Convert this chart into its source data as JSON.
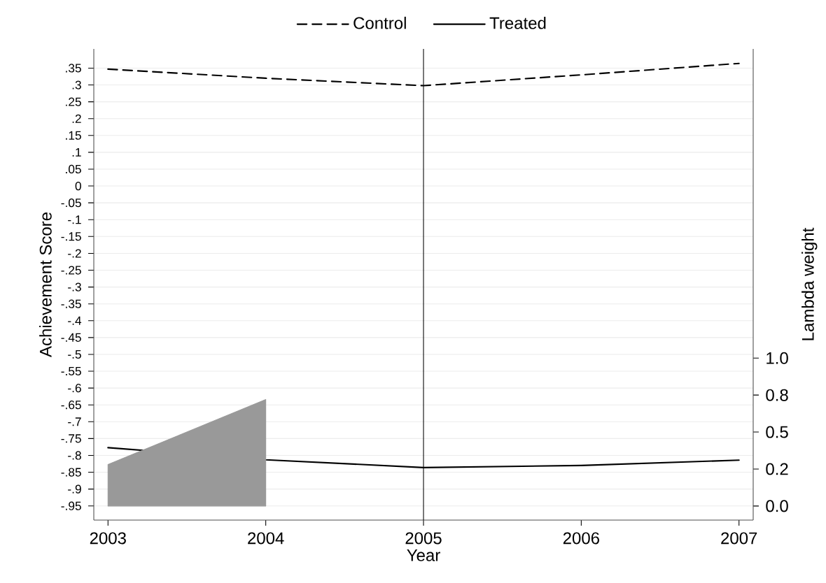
{
  "chart_data": {
    "type": "line",
    "xlabel": "Year",
    "ylabel": "Achievement Score",
    "y2label": "Lambda weight",
    "x": [
      2003,
      2004,
      2005,
      2006,
      2007
    ],
    "series": [
      {
        "name": "Control",
        "color": "#000000",
        "line_style": "dashed",
        "values": [
          0.347,
          0.32,
          0.298,
          0.33,
          0.364
        ]
      },
      {
        "name": "Treated",
        "color": "#000000",
        "line_style": "solid",
        "values": [
          -0.777,
          -0.813,
          -0.836,
          -0.83,
          -0.814
        ]
      },
      {
        "type": "area",
        "axis": "y2",
        "color": "#999999",
        "x": [
          2003,
          2004
        ],
        "values": [
          0.28,
          0.72
        ]
      }
    ],
    "xlim": [
      2002.91,
      2007.09
    ],
    "xticks": [
      2003,
      2004,
      2005,
      2006,
      2007
    ],
    "ylim": [
      -0.992,
      0.407
    ],
    "yticks": [
      {
        "value": 0.35,
        "label": ".35"
      },
      {
        "value": 0.3,
        "label": ".3"
      },
      {
        "value": 0.25,
        "label": ".25"
      },
      {
        "value": 0.2,
        "label": ".2"
      },
      {
        "value": 0.15,
        "label": ".15"
      },
      {
        "value": 0.1,
        "label": ".1"
      },
      {
        "value": 0.05,
        "label": ".05"
      },
      0,
      {
        "value": -0.05,
        "label": "-.05"
      },
      {
        "value": -0.1,
        "label": "-.1"
      },
      {
        "value": -0.15,
        "label": "-.15"
      },
      {
        "value": -0.2,
        "label": "-.2"
      },
      {
        "value": -0.25,
        "label": "-.25"
      },
      {
        "value": -0.3,
        "label": "-.3"
      },
      {
        "value": -0.35,
        "label": "-.35"
      },
      {
        "value": -0.4,
        "label": "-.4"
      },
      {
        "value": -0.45,
        "label": "-.45"
      },
      {
        "value": -0.5,
        "label": "-.5"
      },
      {
        "value": -0.55,
        "label": "-.55"
      },
      {
        "value": -0.6,
        "label": "-.6"
      },
      {
        "value": -0.65,
        "label": "-.65"
      },
      {
        "value": -0.7,
        "label": "-.7"
      },
      {
        "value": -0.75,
        "label": "-.75"
      },
      {
        "value": -0.8,
        "label": "-.8"
      },
      {
        "value": -0.85,
        "label": "-.85"
      },
      {
        "value": -0.9,
        "label": "-.9"
      },
      {
        "value": -0.95,
        "label": "-.95"
      }
    ],
    "y2lim": [
      -0.095,
      3.09
    ],
    "y2ticks": [
      {
        "value": 0,
        "label": "0.0"
      },
      {
        "value": 0.25,
        "label": "0.2"
      },
      {
        "value": 0.5,
        "label": "0.5"
      },
      {
        "value": 0.75,
        "label": "0.8"
      },
      {
        "value": 1,
        "label": "1.0"
      }
    ],
    "ref_lines": [
      {
        "axis": "x",
        "value": 2005
      }
    ],
    "grid": "y",
    "legend": "top"
  }
}
